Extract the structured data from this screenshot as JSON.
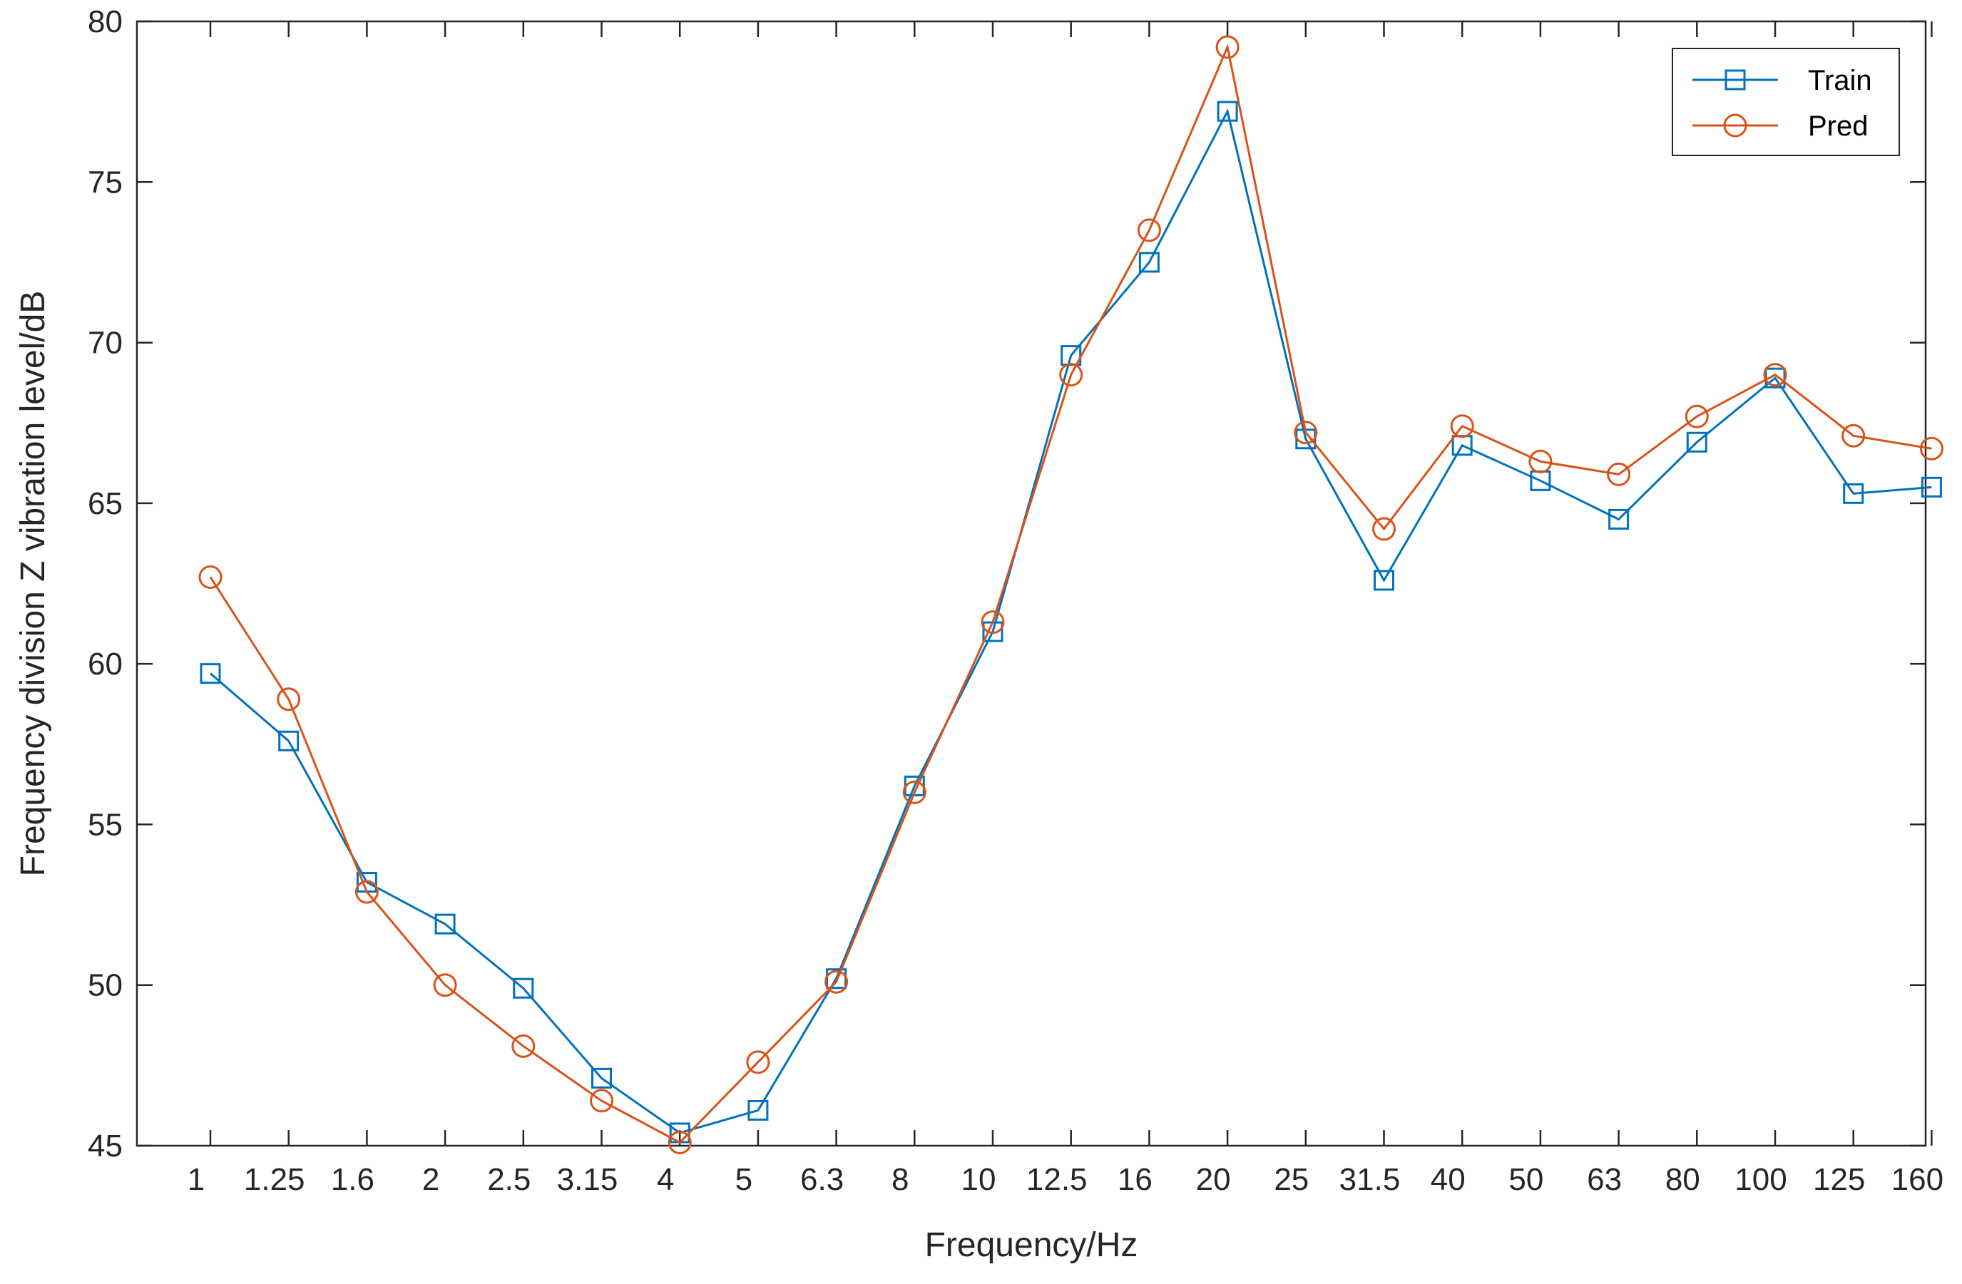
{
  "chart_data": {
    "type": "line",
    "xlabel": "Frequency/Hz",
    "ylabel": "Frequency division Z vibration level/dB",
    "categories": [
      "1",
      "1.25",
      "1.6",
      "2",
      "2.5",
      "3.15",
      "4",
      "5",
      "6.3",
      "8",
      "10",
      "12.5",
      "16",
      "20",
      "25",
      "31.5",
      "40",
      "50",
      "63",
      "80",
      "100",
      "125",
      "160"
    ],
    "ylim": [
      45,
      80
    ],
    "yticks": [
      45,
      50,
      55,
      60,
      65,
      70,
      75,
      80
    ],
    "grid": false,
    "legend_position": "top-right",
    "series": [
      {
        "name": "Train",
        "color": "#0072BD",
        "marker": "square",
        "values": [
          59.7,
          57.6,
          53.2,
          51.9,
          49.9,
          47.1,
          45.4,
          46.1,
          50.2,
          56.2,
          61.0,
          69.6,
          72.5,
          77.2,
          67.0,
          62.6,
          66.8,
          65.7,
          64.5,
          66.9,
          68.9,
          65.3,
          65.5
        ]
      },
      {
        "name": "Pred",
        "color": "#D95319",
        "marker": "circle",
        "values": [
          62.7,
          58.9,
          52.9,
          50.0,
          48.1,
          46.4,
          45.1,
          47.6,
          50.1,
          56.0,
          61.3,
          69.0,
          73.5,
          79.2,
          67.2,
          64.2,
          67.4,
          66.3,
          65.9,
          67.7,
          69.0,
          67.1,
          66.7
        ]
      }
    ]
  }
}
